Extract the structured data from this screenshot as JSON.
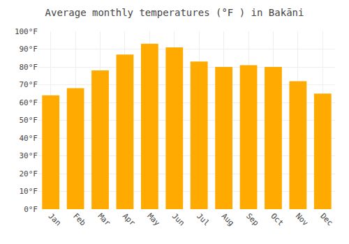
{
  "chart_data": {
    "type": "bar",
    "title": "Average monthly temperatures (°F ) in Bakāni",
    "categories": [
      "Jan",
      "Feb",
      "Mar",
      "Apr",
      "May",
      "Jun",
      "Jul",
      "Aug",
      "Sep",
      "Oct",
      "Nov",
      "Dec"
    ],
    "values": [
      64,
      68,
      78,
      87,
      93,
      91,
      83,
      80,
      81,
      80,
      72,
      65
    ],
    "color": "#FFAA00",
    "ylim": [
      0,
      100
    ],
    "yticks": [
      {
        "value": 0,
        "label": "0°F"
      },
      {
        "value": 10,
        "label": "10°F"
      },
      {
        "value": 20,
        "label": "20°F"
      },
      {
        "value": 30,
        "label": "30°F"
      },
      {
        "value": 40,
        "label": "40°F"
      },
      {
        "value": 50,
        "label": "50°F"
      },
      {
        "value": 60,
        "label": "60°F"
      },
      {
        "value": 70,
        "label": "70°F"
      },
      {
        "value": 80,
        "label": "80°F"
      },
      {
        "value": 90,
        "label": "90°F"
      },
      {
        "value": 100,
        "label": "100°F"
      }
    ],
    "grid": true
  }
}
